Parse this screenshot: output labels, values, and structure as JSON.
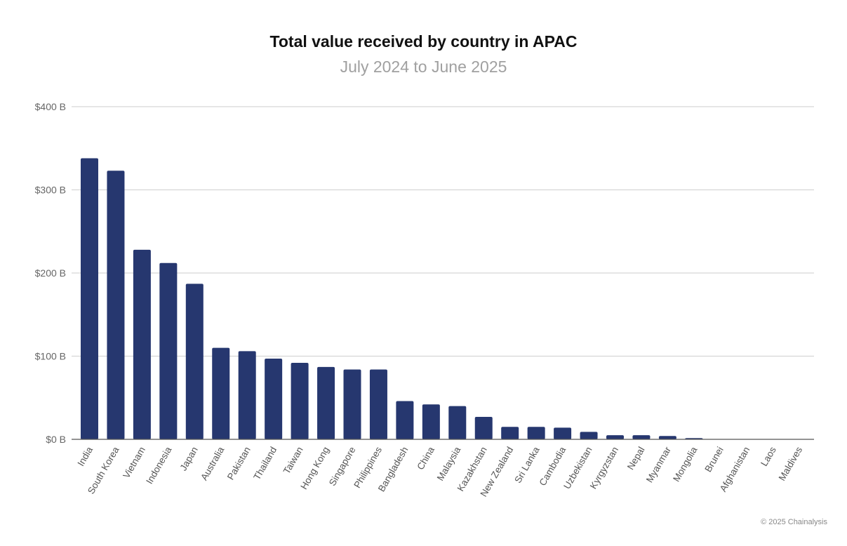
{
  "chart_data": {
    "type": "bar",
    "title": "Total value received by country in APAC",
    "subtitle": "July 2024 to June 2025",
    "xlabel": "",
    "ylabel": "",
    "ylim": [
      0,
      400
    ],
    "yticks": [
      0,
      100,
      200,
      300,
      400
    ],
    "ytick_labels": [
      "$0 B",
      "$100 B",
      "$200 B",
      "$300 B",
      "$400 B"
    ],
    "grid": true,
    "bar_color": "#26376f",
    "categories": [
      "India",
      "South Korea",
      "Vietnam",
      "Indonesia",
      "Japan",
      "Australia",
      "Pakistan",
      "Thailand",
      "Taiwan",
      "Hong Kong",
      "Singapore",
      "Philippines",
      "Bangladesh",
      "China",
      "Malaysia",
      "Kazakhstan",
      "New Zealand",
      "Sri Lanka",
      "Cambodia",
      "Uzbekistan",
      "Kyrgyzstan",
      "Nepal",
      "Myanmar",
      "Mongolia",
      "Brunei",
      "Afghanistan",
      "Laos",
      "Maldives"
    ],
    "values": [
      338,
      323,
      228,
      212,
      187,
      110,
      106,
      97,
      92,
      87,
      84,
      84,
      46,
      42,
      40,
      27,
      15,
      15,
      14,
      9,
      5,
      5,
      4,
      1.5,
      0.2,
      0.1,
      0.1,
      0.1
    ]
  },
  "footer": {
    "credit": "© 2025 Chainalysis"
  }
}
